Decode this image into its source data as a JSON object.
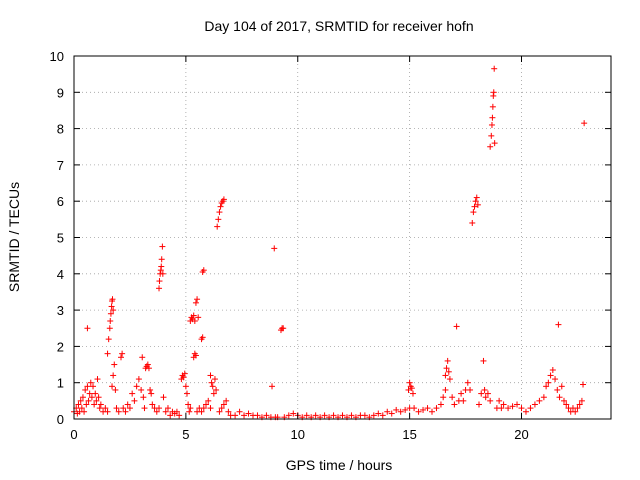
{
  "chart_data": {
    "type": "scatter",
    "title": "Day 104 of 2017, SRMTID for receiver hofn",
    "xlabel": "GPS time / hours",
    "ylabel": "SRMTID / TECUs",
    "xlim": [
      0,
      24
    ],
    "ylim": [
      0,
      10
    ],
    "xticks": [
      0,
      5,
      10,
      15,
      20
    ],
    "yticks": [
      0,
      1,
      2,
      3,
      4,
      5,
      6,
      7,
      8,
      9,
      10
    ],
    "grid": true,
    "marker": "+",
    "marker_color": "#ff0000",
    "series": [
      {
        "points": [
          [
            0.0,
            0.2
          ],
          [
            0.1,
            0.3
          ],
          [
            0.15,
            0.15
          ],
          [
            0.2,
            0.4
          ],
          [
            0.25,
            0.2
          ],
          [
            0.3,
            0.5
          ],
          [
            0.35,
            0.3
          ],
          [
            0.4,
            0.6
          ],
          [
            0.45,
            0.2
          ],
          [
            0.5,
            0.8
          ],
          [
            0.55,
            0.4
          ],
          [
            0.6,
            0.9
          ],
          [
            0.6,
            2.5
          ],
          [
            0.65,
            0.5
          ],
          [
            0.7,
            0.7
          ],
          [
            0.75,
            1.0
          ],
          [
            0.8,
            0.6
          ],
          [
            0.85,
            0.9
          ],
          [
            0.9,
            0.4
          ],
          [
            0.95,
            0.7
          ],
          [
            1.0,
            0.5
          ],
          [
            1.05,
            1.1
          ],
          [
            1.1,
            0.6
          ],
          [
            1.15,
            0.3
          ],
          [
            1.2,
            0.4
          ],
          [
            1.3,
            0.2
          ],
          [
            1.4,
            0.3
          ],
          [
            1.5,
            0.2
          ],
          [
            1.5,
            1.8
          ],
          [
            1.55,
            2.2
          ],
          [
            1.6,
            2.5
          ],
          [
            1.62,
            2.7
          ],
          [
            1.65,
            2.9
          ],
          [
            1.68,
            3.1
          ],
          [
            1.7,
            3.25
          ],
          [
            1.72,
            3.3
          ],
          [
            1.75,
            3.0
          ],
          [
            1.7,
            0.9
          ],
          [
            1.75,
            1.2
          ],
          [
            1.8,
            1.5
          ],
          [
            1.85,
            0.8
          ],
          [
            1.9,
            0.3
          ],
          [
            2.0,
            0.2
          ],
          [
            2.1,
            1.7
          ],
          [
            2.15,
            1.8
          ],
          [
            2.2,
            0.3
          ],
          [
            2.3,
            0.2
          ],
          [
            2.4,
            0.4
          ],
          [
            2.5,
            0.3
          ],
          [
            2.6,
            0.7
          ],
          [
            2.7,
            0.5
          ],
          [
            2.8,
            0.9
          ],
          [
            2.9,
            1.1
          ],
          [
            3.0,
            0.8
          ],
          [
            3.05,
            1.7
          ],
          [
            3.1,
            0.6
          ],
          [
            3.15,
            0.3
          ],
          [
            3.2,
            1.4
          ],
          [
            3.25,
            1.45
          ],
          [
            3.3,
            1.5
          ],
          [
            3.35,
            1.4
          ],
          [
            3.4,
            0.8
          ],
          [
            3.45,
            0.7
          ],
          [
            3.5,
            0.4
          ],
          [
            3.6,
            0.3
          ],
          [
            3.7,
            0.2
          ],
          [
            3.8,
            0.3
          ],
          [
            3.8,
            3.6
          ],
          [
            3.82,
            3.8
          ],
          [
            3.85,
            4.0
          ],
          [
            3.88,
            4.1
          ],
          [
            3.9,
            4.2
          ],
          [
            3.92,
            4.4
          ],
          [
            3.95,
            4.75
          ],
          [
            3.97,
            4.0
          ],
          [
            4.0,
            0.6
          ],
          [
            4.1,
            0.2
          ],
          [
            4.2,
            0.3
          ],
          [
            4.3,
            0.1
          ],
          [
            4.4,
            0.2
          ],
          [
            4.5,
            0.15
          ],
          [
            4.6,
            0.2
          ],
          [
            4.7,
            0.1
          ],
          [
            4.8,
            1.1
          ],
          [
            4.85,
            1.2
          ],
          [
            4.9,
            1.15
          ],
          [
            4.95,
            1.25
          ],
          [
            5.0,
            0.9
          ],
          [
            5.05,
            0.7
          ],
          [
            5.1,
            0.4
          ],
          [
            5.15,
            0.2
          ],
          [
            5.2,
            0.3
          ],
          [
            5.2,
            2.7
          ],
          [
            5.25,
            2.8
          ],
          [
            5.3,
            2.75
          ],
          [
            5.35,
            2.85
          ],
          [
            5.4,
            2.7
          ],
          [
            5.45,
            3.2
          ],
          [
            5.5,
            3.3
          ],
          [
            5.55,
            2.8
          ],
          [
            5.35,
            1.7
          ],
          [
            5.4,
            1.8
          ],
          [
            5.45,
            1.75
          ],
          [
            5.7,
            2.2
          ],
          [
            5.75,
            2.25
          ],
          [
            5.75,
            4.05
          ],
          [
            5.8,
            4.1
          ],
          [
            5.5,
            0.2
          ],
          [
            5.6,
            0.3
          ],
          [
            5.7,
            0.2
          ],
          [
            5.8,
            0.3
          ],
          [
            5.9,
            0.4
          ],
          [
            6.0,
            0.5
          ],
          [
            6.1,
            0.3
          ],
          [
            6.1,
            1.2
          ],
          [
            6.15,
            1.0
          ],
          [
            6.2,
            0.9
          ],
          [
            6.25,
            0.7
          ],
          [
            6.3,
            1.1
          ],
          [
            6.35,
            0.8
          ],
          [
            6.4,
            5.3
          ],
          [
            6.45,
            5.5
          ],
          [
            6.5,
            5.7
          ],
          [
            6.55,
            5.85
          ],
          [
            6.6,
            5.95
          ],
          [
            6.65,
            6.0
          ],
          [
            6.7,
            6.05
          ],
          [
            6.5,
            0.2
          ],
          [
            6.6,
            0.3
          ],
          [
            6.7,
            0.4
          ],
          [
            6.8,
            0.5
          ],
          [
            6.9,
            0.2
          ],
          [
            7.0,
            0.1
          ],
          [
            7.2,
            0.1
          ],
          [
            7.4,
            0.2
          ],
          [
            7.6,
            0.1
          ],
          [
            7.8,
            0.15
          ],
          [
            8.0,
            0.1
          ],
          [
            8.2,
            0.1
          ],
          [
            8.4,
            0.05
          ],
          [
            8.6,
            0.1
          ],
          [
            8.8,
            0.05
          ],
          [
            8.85,
            0.9
          ],
          [
            8.95,
            4.7
          ],
          [
            9.0,
            0.05
          ],
          [
            9.1,
            0.05
          ],
          [
            9.25,
            2.45
          ],
          [
            9.3,
            2.5
          ],
          [
            9.35,
            2.5
          ],
          [
            9.4,
            0.05
          ],
          [
            9.6,
            0.1
          ],
          [
            9.8,
            0.15
          ],
          [
            10.0,
            0.1
          ],
          [
            10.2,
            0.05
          ],
          [
            10.4,
            0.1
          ],
          [
            10.6,
            0.05
          ],
          [
            10.8,
            0.1
          ],
          [
            11.0,
            0.05
          ],
          [
            11.2,
            0.1
          ],
          [
            11.4,
            0.05
          ],
          [
            11.6,
            0.1
          ],
          [
            11.8,
            0.05
          ],
          [
            12.0,
            0.1
          ],
          [
            12.2,
            0.05
          ],
          [
            12.4,
            0.1
          ],
          [
            12.6,
            0.05
          ],
          [
            12.8,
            0.1
          ],
          [
            13.0,
            0.1
          ],
          [
            13.2,
            0.05
          ],
          [
            13.4,
            0.1
          ],
          [
            13.6,
            0.15
          ],
          [
            13.8,
            0.1
          ],
          [
            14.0,
            0.2
          ],
          [
            14.2,
            0.15
          ],
          [
            14.4,
            0.25
          ],
          [
            14.6,
            0.2
          ],
          [
            14.8,
            0.25
          ],
          [
            15.0,
            0.3
          ],
          [
            14.95,
            0.8
          ],
          [
            15.0,
            1.0
          ],
          [
            15.05,
            0.9
          ],
          [
            15.1,
            0.85
          ],
          [
            15.15,
            0.7
          ],
          [
            15.2,
            0.3
          ],
          [
            15.4,
            0.2
          ],
          [
            15.6,
            0.25
          ],
          [
            15.8,
            0.3
          ],
          [
            16.0,
            0.2
          ],
          [
            16.2,
            0.3
          ],
          [
            16.4,
            0.4
          ],
          [
            16.5,
            0.6
          ],
          [
            16.6,
            0.8
          ],
          [
            16.6,
            1.2
          ],
          [
            16.65,
            1.4
          ],
          [
            16.7,
            1.6
          ],
          [
            16.75,
            1.3
          ],
          [
            16.8,
            1.1
          ],
          [
            16.9,
            0.6
          ],
          [
            17.0,
            0.4
          ],
          [
            17.1,
            2.55
          ],
          [
            17.2,
            0.5
          ],
          [
            17.3,
            0.7
          ],
          [
            17.4,
            0.5
          ],
          [
            17.5,
            0.8
          ],
          [
            17.6,
            1.0
          ],
          [
            17.7,
            0.8
          ],
          [
            17.8,
            5.4
          ],
          [
            17.85,
            5.7
          ],
          [
            17.9,
            5.85
          ],
          [
            17.95,
            6.0
          ],
          [
            18.0,
            6.1
          ],
          [
            18.05,
            5.9
          ],
          [
            18.1,
            0.4
          ],
          [
            18.2,
            0.7
          ],
          [
            18.3,
            1.6
          ],
          [
            18.35,
            0.8
          ],
          [
            18.4,
            0.6
          ],
          [
            18.5,
            0.7
          ],
          [
            18.6,
            0.5
          ],
          [
            18.6,
            7.5
          ],
          [
            18.65,
            7.8
          ],
          [
            18.68,
            8.1
          ],
          [
            18.7,
            8.3
          ],
          [
            18.72,
            8.6
          ],
          [
            18.74,
            8.9
          ],
          [
            18.76,
            9.0
          ],
          [
            18.78,
            9.65
          ],
          [
            18.8,
            7.6
          ],
          [
            18.9,
            0.3
          ],
          [
            19.0,
            0.5
          ],
          [
            19.1,
            0.3
          ],
          [
            19.2,
            0.4
          ],
          [
            19.4,
            0.3
          ],
          [
            19.6,
            0.35
          ],
          [
            19.8,
            0.4
          ],
          [
            20.0,
            0.3
          ],
          [
            20.2,
            0.2
          ],
          [
            20.4,
            0.3
          ],
          [
            20.6,
            0.4
          ],
          [
            20.8,
            0.5
          ],
          [
            21.0,
            0.6
          ],
          [
            21.1,
            0.9
          ],
          [
            21.2,
            1.0
          ],
          [
            21.3,
            1.2
          ],
          [
            21.4,
            1.35
          ],
          [
            21.5,
            1.1
          ],
          [
            21.6,
            0.8
          ],
          [
            21.65,
            2.6
          ],
          [
            21.7,
            0.6
          ],
          [
            21.8,
            0.9
          ],
          [
            21.9,
            0.5
          ],
          [
            22.0,
            0.4
          ],
          [
            22.1,
            0.3
          ],
          [
            22.2,
            0.2
          ],
          [
            22.3,
            0.3
          ],
          [
            22.4,
            0.2
          ],
          [
            22.5,
            0.3
          ],
          [
            22.6,
            0.4
          ],
          [
            22.7,
            0.5
          ],
          [
            22.75,
            0.95
          ],
          [
            22.8,
            8.15
          ]
        ]
      }
    ]
  }
}
